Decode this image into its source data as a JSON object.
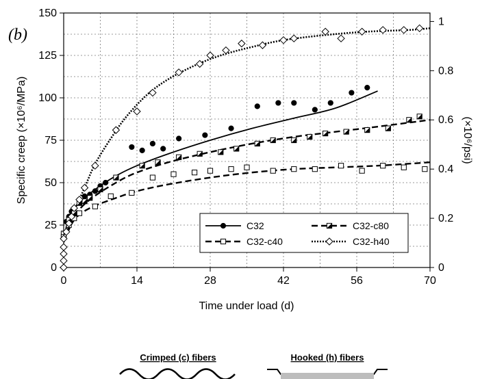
{
  "chart_data": {
    "type": "scatter",
    "panel_label": "(b)",
    "xlabel": "Time under load (d)",
    "ylabel": "Specific creep (×10⁶/MPa)",
    "y2label": "(×10⁶/psi)",
    "xlim": [
      0,
      70
    ],
    "ylim": [
      0,
      150
    ],
    "y2lim": [
      0,
      1.0345
    ],
    "xticks": [
      0,
      14,
      28,
      42,
      56,
      70
    ],
    "yticks": [
      0,
      25,
      50,
      75,
      100,
      125,
      150
    ],
    "y2ticks": [
      0,
      0.2,
      0.4,
      0.6,
      0.8,
      1
    ],
    "y2ticklabels": [
      "0",
      "0.2",
      "0.4",
      "0.6",
      "0.8",
      "1"
    ],
    "grid": true,
    "legend_position": "bottom-right",
    "series": [
      {
        "name": "C32",
        "marker": "filled-circle",
        "line": "solid",
        "points": [
          [
            0,
            18
          ],
          [
            0.5,
            27
          ],
          [
            1,
            30
          ],
          [
            1.5,
            33
          ],
          [
            2,
            35
          ],
          [
            3,
            40
          ],
          [
            4,
            42
          ],
          [
            5,
            43
          ],
          [
            6,
            45
          ],
          [
            7,
            48
          ],
          [
            8,
            50
          ],
          [
            10,
            53
          ],
          [
            13,
            71
          ],
          [
            15,
            69
          ],
          [
            17,
            73
          ],
          [
            19,
            70
          ],
          [
            22,
            76
          ],
          [
            27,
            78
          ],
          [
            32,
            82
          ],
          [
            37,
            95
          ],
          [
            41,
            97
          ],
          [
            44,
            97
          ],
          [
            48,
            93
          ],
          [
            51,
            97
          ],
          [
            55,
            103
          ],
          [
            58,
            106
          ]
        ],
        "fit": [
          [
            0,
            15
          ],
          [
            1,
            30
          ],
          [
            3,
            38
          ],
          [
            6,
            46
          ],
          [
            10,
            54
          ],
          [
            14,
            60
          ],
          [
            20,
            67
          ],
          [
            28,
            75
          ],
          [
            36,
            82
          ],
          [
            44,
            88
          ],
          [
            52,
            94
          ],
          [
            60,
            104
          ]
        ]
      },
      {
        "name": "C32-c80",
        "marker": "half-filled-square",
        "line": "dashed",
        "points": [
          [
            0,
            20
          ],
          [
            1,
            28
          ],
          [
            2,
            32
          ],
          [
            3,
            38
          ],
          [
            4,
            39
          ],
          [
            5,
            41
          ],
          [
            7,
            46
          ],
          [
            10,
            53
          ],
          [
            15,
            60
          ],
          [
            18,
            62
          ],
          [
            22,
            65
          ],
          [
            26,
            67
          ],
          [
            30,
            68
          ],
          [
            33,
            70
          ],
          [
            37,
            73
          ],
          [
            40,
            75
          ],
          [
            44,
            75
          ],
          [
            47,
            77
          ],
          [
            50,
            79
          ],
          [
            54,
            80
          ],
          [
            58,
            81
          ],
          [
            62,
            82
          ],
          [
            66,
            87
          ],
          [
            68,
            89
          ]
        ],
        "fit": [
          [
            0,
            15
          ],
          [
            2,
            30
          ],
          [
            5,
            40
          ],
          [
            10,
            50
          ],
          [
            14,
            56
          ],
          [
            20,
            62
          ],
          [
            28,
            68
          ],
          [
            36,
            73
          ],
          [
            44,
            77
          ],
          [
            52,
            80
          ],
          [
            60,
            83
          ],
          [
            70,
            87
          ]
        ]
      },
      {
        "name": "C32-c40",
        "marker": "open-square",
        "line": "dashed",
        "points": [
          [
            0,
            18
          ],
          [
            1,
            25
          ],
          [
            2,
            29
          ],
          [
            3,
            32
          ],
          [
            6,
            36
          ],
          [
            9,
            42
          ],
          [
            13,
            44
          ],
          [
            17,
            53
          ],
          [
            21,
            55
          ],
          [
            25,
            56
          ],
          [
            28,
            57
          ],
          [
            32,
            58
          ],
          [
            35,
            59
          ],
          [
            40,
            57
          ],
          [
            44,
            58
          ],
          [
            48,
            58
          ],
          [
            53,
            60
          ],
          [
            57,
            57
          ],
          [
            61,
            60
          ],
          [
            65,
            59
          ],
          [
            69,
            58
          ]
        ],
        "fit": [
          [
            0,
            15
          ],
          [
            2,
            28
          ],
          [
            5,
            35
          ],
          [
            10,
            41
          ],
          [
            14,
            45
          ],
          [
            20,
            49
          ],
          [
            28,
            53
          ],
          [
            36,
            56
          ],
          [
            44,
            58
          ],
          [
            52,
            59
          ],
          [
            60,
            60
          ],
          [
            70,
            62
          ]
        ]
      },
      {
        "name": "C32-h40",
        "marker": "open-diamond",
        "line": "dotted",
        "points": [
          [
            0,
            0
          ],
          [
            0,
            4
          ],
          [
            0,
            8
          ],
          [
            0,
            12
          ],
          [
            0,
            17
          ],
          [
            0.5,
            21
          ],
          [
            1,
            26
          ],
          [
            1.5,
            30
          ],
          [
            2,
            35
          ],
          [
            3,
            40
          ],
          [
            4,
            47
          ],
          [
            6,
            60
          ],
          [
            10,
            81
          ],
          [
            14,
            92
          ],
          [
            17,
            103
          ],
          [
            22,
            115
          ],
          [
            26,
            120
          ],
          [
            28,
            125
          ],
          [
            31,
            128
          ],
          [
            34,
            132
          ],
          [
            38,
            131
          ],
          [
            42,
            134
          ],
          [
            44,
            135
          ],
          [
            50,
            139
          ],
          [
            53,
            135
          ],
          [
            57,
            139
          ],
          [
            61,
            140
          ],
          [
            65,
            140
          ],
          [
            68,
            141
          ]
        ],
        "fit": [
          [
            0,
            15
          ],
          [
            2,
            33
          ],
          [
            4,
            47
          ],
          [
            6,
            61
          ],
          [
            9,
            76
          ],
          [
            12,
            89
          ],
          [
            16,
            102
          ],
          [
            20,
            111
          ],
          [
            25,
            119
          ],
          [
            30,
            125
          ],
          [
            36,
            130
          ],
          [
            42,
            134
          ],
          [
            50,
            137
          ],
          [
            58,
            139
          ],
          [
            66,
            140
          ],
          [
            70,
            141
          ]
        ]
      }
    ]
  },
  "fiber_legend": {
    "crimped_label": "Crimped (c) fibers",
    "hooked_label": "Hooked (h) fibers"
  }
}
